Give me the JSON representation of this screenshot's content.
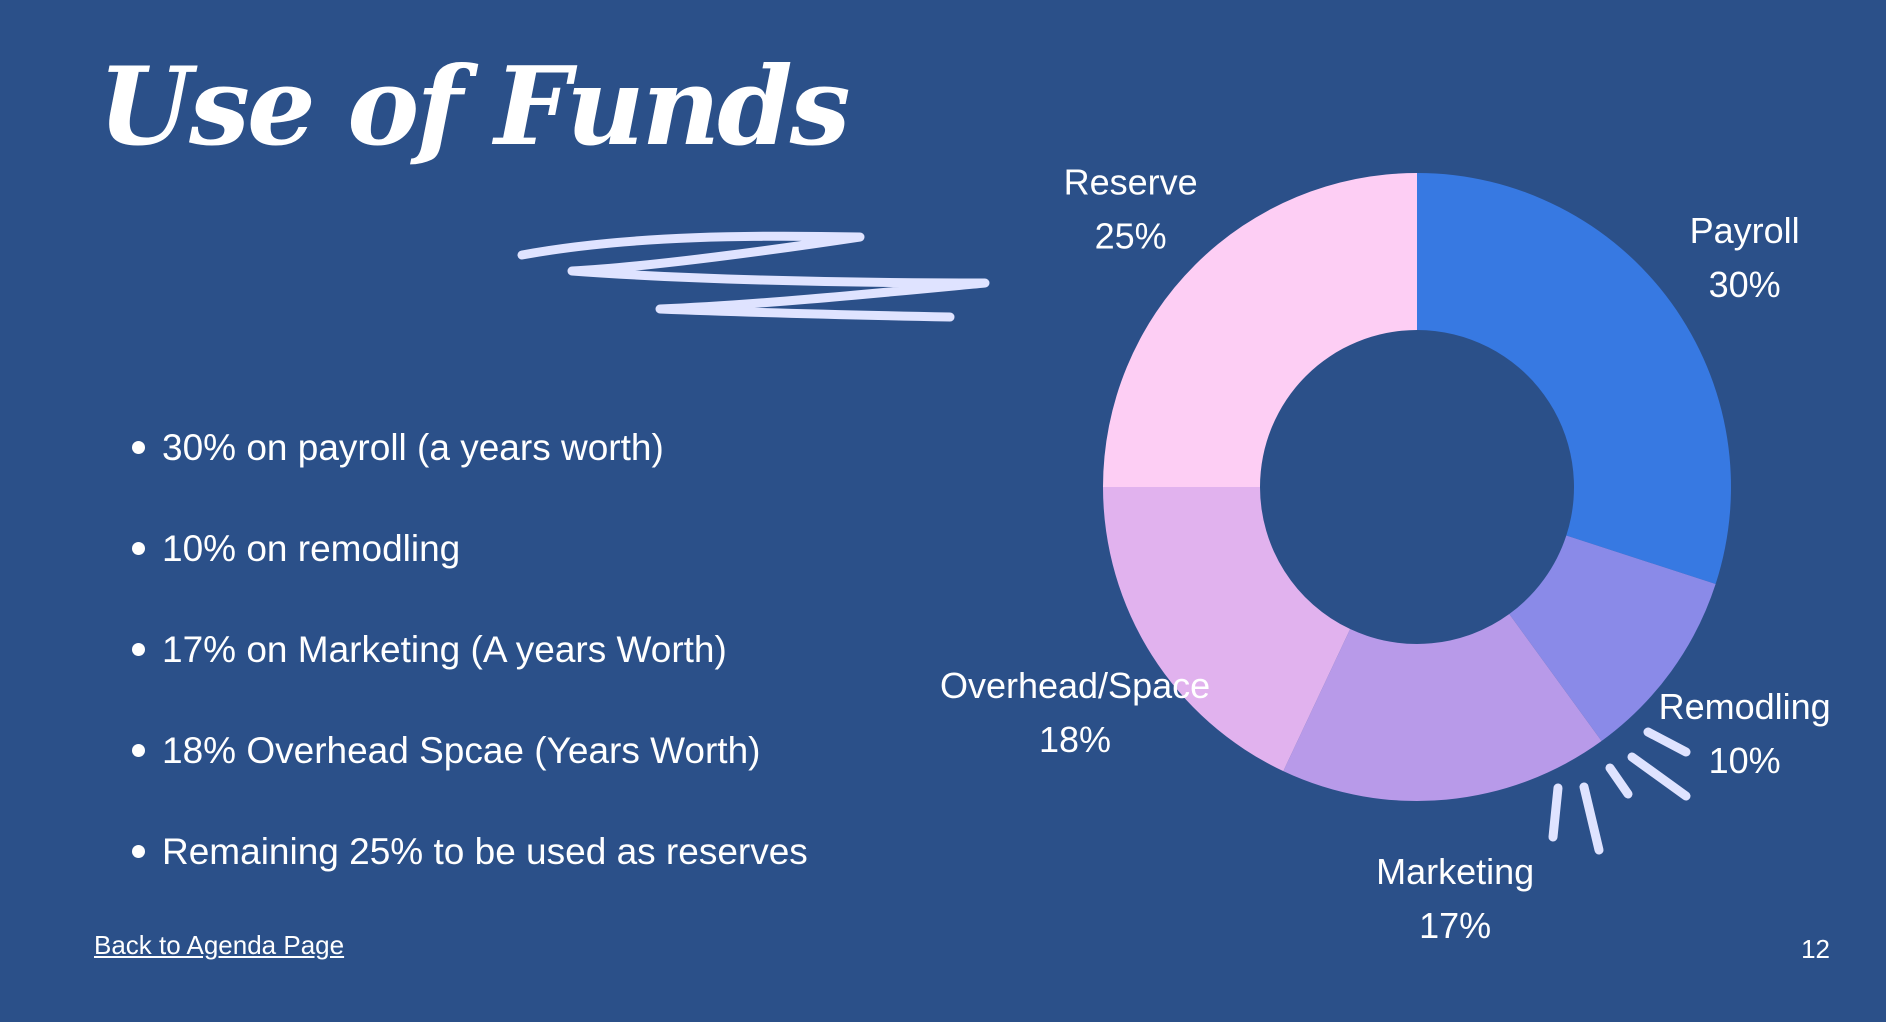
{
  "slide": {
    "title": "Use of Funds",
    "bullets": [
      "30% on payroll (a years worth)",
      "10% on remodling",
      "17% on Marketing (A years Worth)",
      "18% Overhead Spcae (Years Worth)",
      "Remaining 25% to be used as reserves"
    ],
    "back_link": "Back to Agenda Page",
    "page_number": "12"
  },
  "chart_data": {
    "type": "pie",
    "style": "donut",
    "start": "top",
    "direction": "clockwise",
    "labels_outside": true,
    "slices": [
      {
        "label": "Payroll",
        "value": 30,
        "value_label": "30%",
        "color": "#3779e2"
      },
      {
        "label": "Remodling",
        "value": 10,
        "value_label": "10%",
        "color": "#8a8ae8"
      },
      {
        "label": "Marketing",
        "value": 17,
        "value_label": "17%",
        "color": "#b89ae9"
      },
      {
        "label": "Overhead/Space",
        "value": 18,
        "value_label": "18%",
        "color": "#e1b2ee"
      },
      {
        "label": "Reserve",
        "value": 25,
        "value_label": "25%",
        "color": "#fdcef4"
      }
    ]
  },
  "colors": {
    "background": "#2b5089",
    "text": "#ffffff",
    "scribble": "#dfe3ff"
  }
}
